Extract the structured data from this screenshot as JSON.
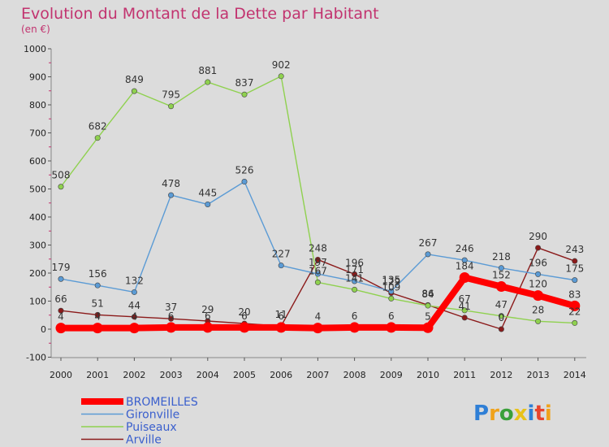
{
  "chart_data": {
    "type": "line",
    "title": "Evolution du Montant de la Dette par Habitant",
    "subtitle": "(en €)",
    "x": [
      "2000",
      "2001",
      "2002",
      "2003",
      "2004",
      "2005",
      "2006",
      "2007",
      "2008",
      "2009",
      "2010",
      "2011",
      "2012",
      "2013",
      "2014"
    ],
    "ylim": [
      -100,
      1000
    ],
    "yticks": [
      -100,
      0,
      100,
      200,
      300,
      400,
      500,
      600,
      700,
      800,
      900,
      1000
    ],
    "grid": false,
    "legend_position": "bottom-left",
    "series": [
      {
        "name": "BROMEILLES",
        "color": "#ff0000",
        "values": [
          4,
          4,
          4,
          6,
          6,
          6,
          6,
          4,
          6,
          6,
          5,
          184,
          152,
          120,
          83
        ],
        "labels": [
          "4",
          "4",
          "4",
          "6",
          "6",
          "6",
          "6",
          "4",
          "6",
          "6",
          "5",
          "184",
          "152",
          "120",
          "83"
        ]
      },
      {
        "name": "Gironville",
        "color": "#5b9bd5",
        "values": [
          179,
          156,
          132,
          478,
          445,
          526,
          227,
          197,
          171,
          135,
          267,
          246,
          218,
          196,
          175
        ],
        "labels": [
          "179",
          "156",
          "132",
          "478",
          "445",
          "526",
          "227",
          "197",
          "171",
          "135",
          "267",
          "246",
          "218",
          "196",
          "175"
        ]
      },
      {
        "name": "Puiseaux",
        "color": "#8fd14f",
        "values": [
          508,
          682,
          849,
          795,
          881,
          837,
          902,
          167,
          141,
          109,
          84,
          67,
          47,
          28,
          22
        ],
        "labels": [
          "508",
          "682",
          "849",
          "795",
          "881",
          "837",
          "902",
          "167",
          "141",
          "109",
          "84",
          "67",
          "47",
          "28",
          "22"
        ]
      },
      {
        "name": "Arville",
        "color": "#8b1a1a",
        "values": [
          66,
          51,
          44,
          37,
          29,
          20,
          11,
          248,
          196,
          129,
          86,
          41,
          0,
          290,
          243
        ],
        "labels": [
          "66",
          "51",
          "44",
          "37",
          "29",
          "20",
          "11",
          "248",
          "196",
          "129",
          "86",
          "41",
          "0",
          "290",
          "243"
        ]
      }
    ]
  },
  "logo": {
    "text": "Proxiti"
  }
}
